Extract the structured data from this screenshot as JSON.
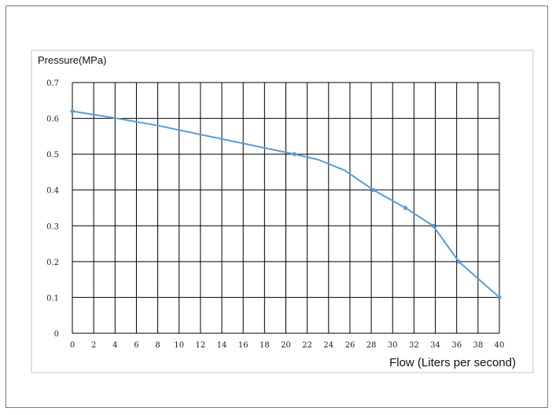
{
  "chart_data": {
    "type": "line",
    "ylabel": "Pressure(MPa)",
    "xlabel": "Flow (Liters per second)",
    "xlim": [
      0,
      40
    ],
    "ylim": [
      0,
      0.7
    ],
    "x_ticks": [
      "0",
      "2",
      "4",
      "6",
      "8",
      "10",
      "12",
      "14",
      "16",
      "18",
      "20",
      "22",
      "24",
      "26",
      "28",
      "30",
      "32",
      "34",
      "36",
      "38",
      "40"
    ],
    "y_ticks": [
      "0",
      "0.1",
      "0.2",
      "0.3",
      "0.4",
      "0.5",
      "0.6",
      "0.7"
    ],
    "grid": true,
    "legend": "none",
    "line_color": "#5b9bd5",
    "series": [
      {
        "x": [
          0,
          4.2,
          8,
          12,
          16,
          20.8,
          23,
          25.5,
          28.2,
          31.2,
          33.8,
          36.2,
          40
        ],
        "y": [
          0.62,
          0.6,
          0.58,
          0.555,
          0.53,
          0.5,
          0.485,
          0.455,
          0.4,
          0.35,
          0.3,
          0.2,
          0.1
        ],
        "markers_at": [
          0,
          20.8,
          28.2,
          31.2,
          33.8,
          36.2,
          40
        ]
      }
    ]
  }
}
